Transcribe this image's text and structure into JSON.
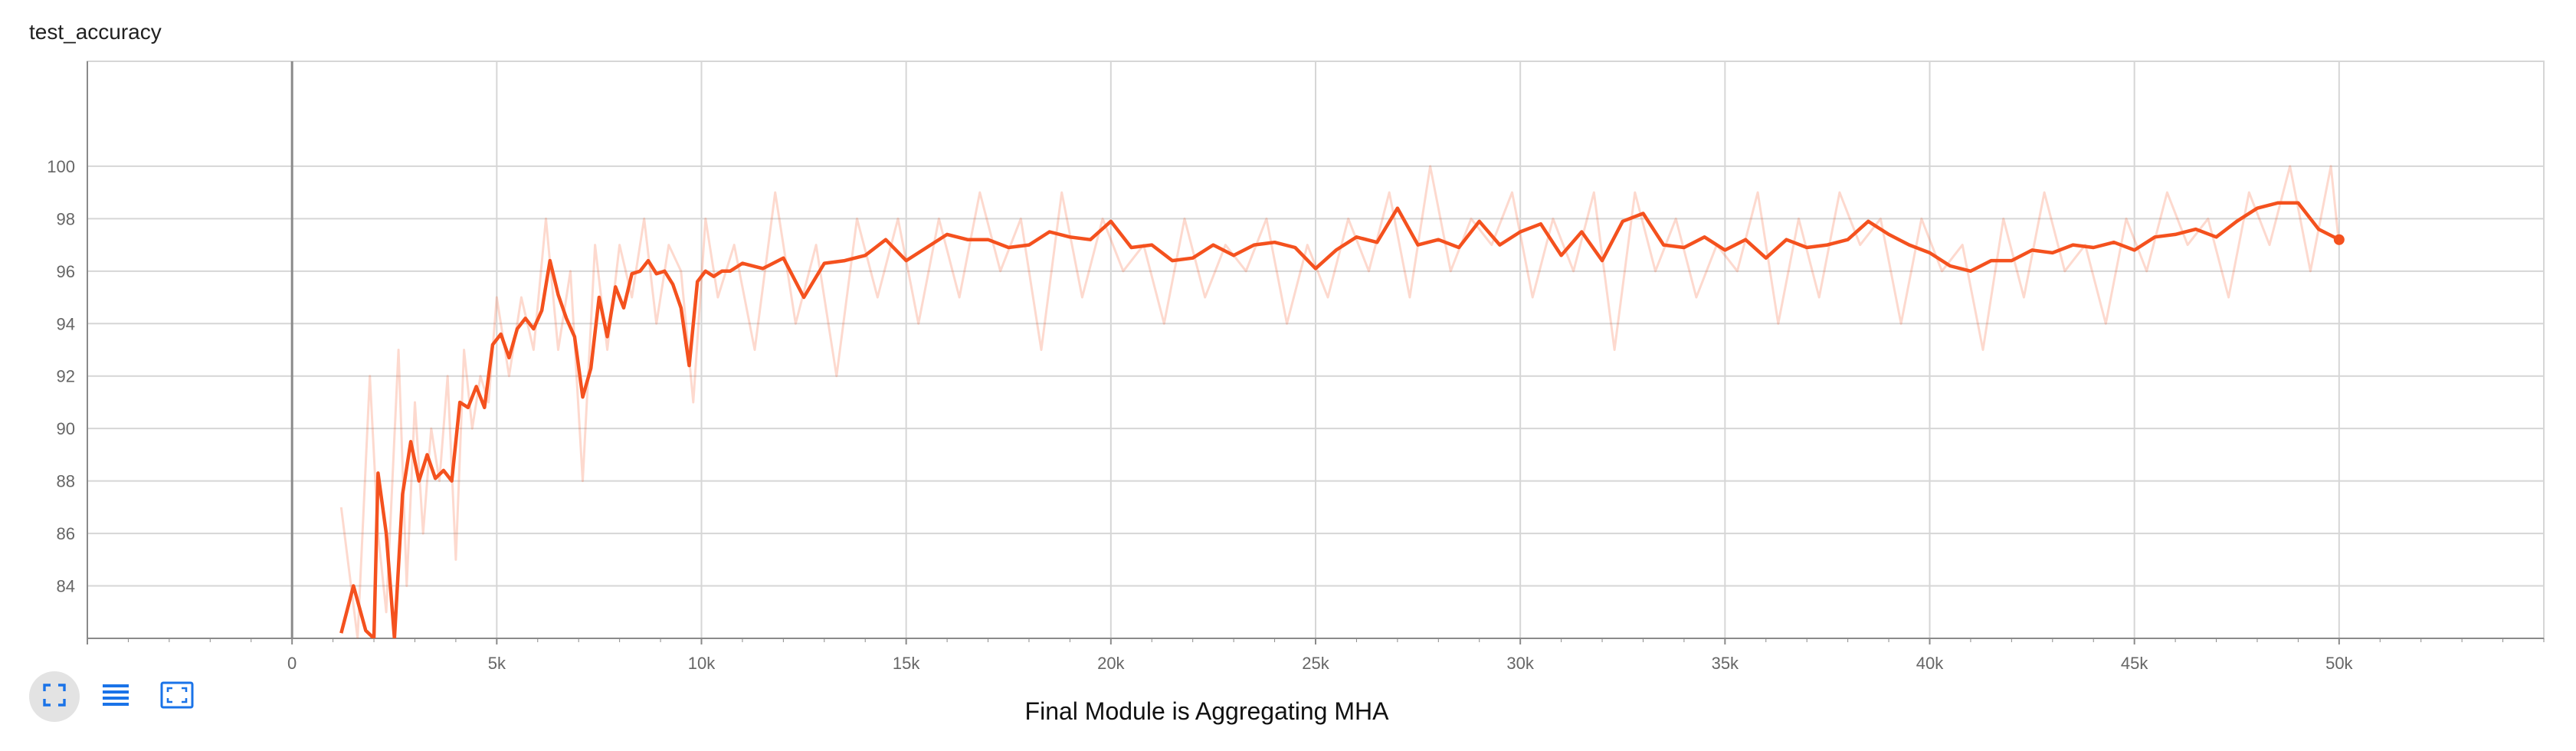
{
  "card": {
    "title": "test_accuracy"
  },
  "caption": "Final Module is Aggregating MHA",
  "toolbar": {
    "buttons": [
      {
        "icon": "fit-domain-icon",
        "active": true
      },
      {
        "icon": "list-icon",
        "active": false
      },
      {
        "icon": "expand-icon",
        "active": false
      }
    ]
  },
  "colors": {
    "smoothed": "#f4511e",
    "raw": "#f4511e",
    "grid": "#d6d6d6",
    "axis": "#8a8a8a"
  },
  "chart_data": {
    "type": "line",
    "title": "test_accuracy",
    "xlabel": "",
    "ylabel": "",
    "xlim": [
      -5000,
      55000
    ],
    "ylim": [
      82,
      104
    ],
    "x_ticks": [
      0,
      5000,
      10000,
      15000,
      20000,
      25000,
      30000,
      35000,
      40000,
      45000,
      50000
    ],
    "x_tick_labels": [
      "0",
      "5k",
      "10k",
      "15k",
      "20k",
      "25k",
      "30k",
      "35k",
      "40k",
      "45k",
      "50k"
    ],
    "y_ticks": [
      84,
      86,
      88,
      90,
      92,
      94,
      96,
      98,
      100
    ],
    "y_tick_labels": [
      "84",
      "86",
      "88",
      "90",
      "92",
      "94",
      "96",
      "98",
      "100"
    ],
    "grid": true,
    "series": [
      {
        "role": "smoothed",
        "x": [
          1200,
          1500,
          1800,
          2000,
          2100,
          2300,
          2500,
          2700,
          2900,
          3100,
          3300,
          3500,
          3700,
          3900,
          4100,
          4300,
          4500,
          4700,
          4900,
          5100,
          5300,
          5500,
          5700,
          5900,
          6100,
          6300,
          6500,
          6700,
          6900,
          7100,
          7300,
          7500,
          7700,
          7900,
          8100,
          8300,
          8500,
          8700,
          8900,
          9100,
          9300,
          9500,
          9700,
          9900,
          10100,
          10300,
          10500,
          10700,
          11000,
          11500,
          12000,
          12500,
          13000,
          13500,
          14000,
          14500,
          15000,
          15500,
          16000,
          16500,
          17000,
          17500,
          18000,
          18500,
          19000,
          19500,
          20000,
          20500,
          21000,
          21500,
          22000,
          22500,
          23000,
          23500,
          24000,
          24500,
          25000,
          25500,
          26000,
          26500,
          27000,
          27500,
          28000,
          28500,
          29000,
          29500,
          30000,
          30500,
          31000,
          31500,
          32000,
          32500,
          33000,
          33500,
          34000,
          34500,
          35000,
          35500,
          36000,
          36500,
          37000,
          37500,
          38000,
          38500,
          39000,
          39500,
          40000,
          40500,
          41000,
          41500,
          42000,
          42500,
          43000,
          43500,
          44000,
          44500,
          45000,
          45500,
          46000,
          46500,
          47000,
          47500,
          48000,
          48500,
          49000,
          49500,
          50000
        ],
        "y": [
          82.2,
          84.0,
          82.3,
          82.0,
          88.3,
          86.0,
          82.0,
          87.5,
          89.5,
          88.0,
          89.0,
          88.1,
          88.4,
          88.0,
          91.0,
          90.8,
          91.6,
          90.8,
          93.2,
          93.6,
          92.7,
          93.8,
          94.2,
          93.8,
          94.5,
          96.4,
          95.1,
          94.2,
          93.5,
          91.2,
          92.3,
          95.0,
          93.5,
          95.4,
          94.6,
          95.9,
          96.0,
          96.4,
          95.9,
          96.0,
          95.5,
          94.6,
          92.4,
          95.6,
          96.0,
          95.8,
          96.0,
          96.0,
          96.3,
          96.1,
          96.5,
          95.0,
          96.3,
          96.4,
          96.6,
          97.2,
          96.4,
          96.9,
          97.4,
          97.2,
          97.2,
          96.9,
          97.0,
          97.5,
          97.3,
          97.2,
          97.9,
          96.9,
          97.0,
          96.4,
          96.5,
          97.0,
          96.6,
          97.0,
          97.1,
          96.9,
          96.1,
          96.8,
          97.3,
          97.1,
          98.4,
          97.0,
          97.2,
          96.9,
          97.9,
          97.0,
          97.5,
          97.8,
          96.6,
          97.5,
          96.4,
          97.9,
          98.2,
          97.0,
          96.9,
          97.3,
          96.8,
          97.2,
          96.5,
          97.2,
          96.9,
          97.0,
          97.2,
          97.9,
          97.4,
          97.0,
          96.7,
          96.2,
          96.0,
          96.4,
          96.4,
          96.8,
          96.7,
          97.0,
          96.9,
          97.1,
          96.8,
          97.3,
          97.4,
          97.6,
          97.3,
          97.9,
          98.4,
          98.6,
          98.6,
          97.6,
          97.2
        ]
      },
      {
        "role": "raw",
        "x": [
          1200,
          1600,
          1900,
          2100,
          2300,
          2600,
          2800,
          3000,
          3200,
          3400,
          3600,
          3800,
          4000,
          4200,
          4400,
          4600,
          4800,
          5000,
          5300,
          5600,
          5900,
          6200,
          6500,
          6800,
          7100,
          7400,
          7700,
          8000,
          8300,
          8600,
          8900,
          9200,
          9500,
          9800,
          10100,
          10400,
          10800,
          11300,
          11800,
          12300,
          12800,
          13300,
          13800,
          14300,
          14800,
          15300,
          15800,
          16300,
          16800,
          17300,
          17800,
          18300,
          18800,
          19300,
          19800,
          20300,
          20800,
          21300,
          21800,
          22300,
          22800,
          23300,
          23800,
          24300,
          24800,
          25300,
          25800,
          26300,
          26800,
          27300,
          27800,
          28300,
          28800,
          29300,
          29800,
          30300,
          30800,
          31300,
          31800,
          32300,
          32800,
          33300,
          33800,
          34300,
          34800,
          35300,
          35800,
          36300,
          36800,
          37300,
          37800,
          38300,
          38800,
          39300,
          39800,
          40300,
          40800,
          41300,
          41800,
          42300,
          42800,
          43300,
          43800,
          44300,
          44800,
          45300,
          45800,
          46300,
          46800,
          47300,
          47800,
          48300,
          48800,
          49300,
          49800,
          50000
        ],
        "y": [
          87.0,
          82.0,
          92.0,
          86.0,
          83.0,
          93.0,
          84.0,
          91.0,
          86.0,
          90.0,
          88.0,
          92.0,
          85.0,
          93.0,
          90.0,
          92.0,
          91.0,
          95.0,
          92.0,
          95.0,
          93.0,
          98.0,
          93.0,
          96.0,
          88.0,
          97.0,
          93.0,
          97.0,
          95.0,
          98.0,
          94.0,
          97.0,
          96.0,
          91.0,
          98.0,
          95.0,
          97.0,
          93.0,
          99.0,
          94.0,
          97.0,
          92.0,
          98.0,
          95.0,
          98.0,
          94.0,
          98.0,
          95.0,
          99.0,
          96.0,
          98.0,
          93.0,
          99.0,
          95.0,
          98.0,
          96.0,
          97.0,
          94.0,
          98.0,
          95.0,
          97.0,
          96.0,
          98.0,
          94.0,
          97.0,
          95.0,
          98.0,
          96.0,
          99.0,
          95.0,
          100.0,
          96.0,
          98.0,
          97.0,
          99.0,
          95.0,
          98.0,
          96.0,
          99.0,
          93.0,
          99.0,
          96.0,
          98.0,
          95.0,
          97.0,
          96.0,
          99.0,
          94.0,
          98.0,
          95.0,
          99.0,
          97.0,
          98.0,
          94.0,
          98.0,
          96.0,
          97.0,
          93.0,
          98.0,
          95.0,
          99.0,
          96.0,
          97.0,
          94.0,
          98.0,
          96.0,
          99.0,
          97.0,
          98.0,
          95.0,
          99.0,
          97.0,
          100.0,
          96.0,
          100.0,
          97.0
        ]
      }
    ],
    "last_point": {
      "x": 50000,
      "y": 97.2
    }
  }
}
